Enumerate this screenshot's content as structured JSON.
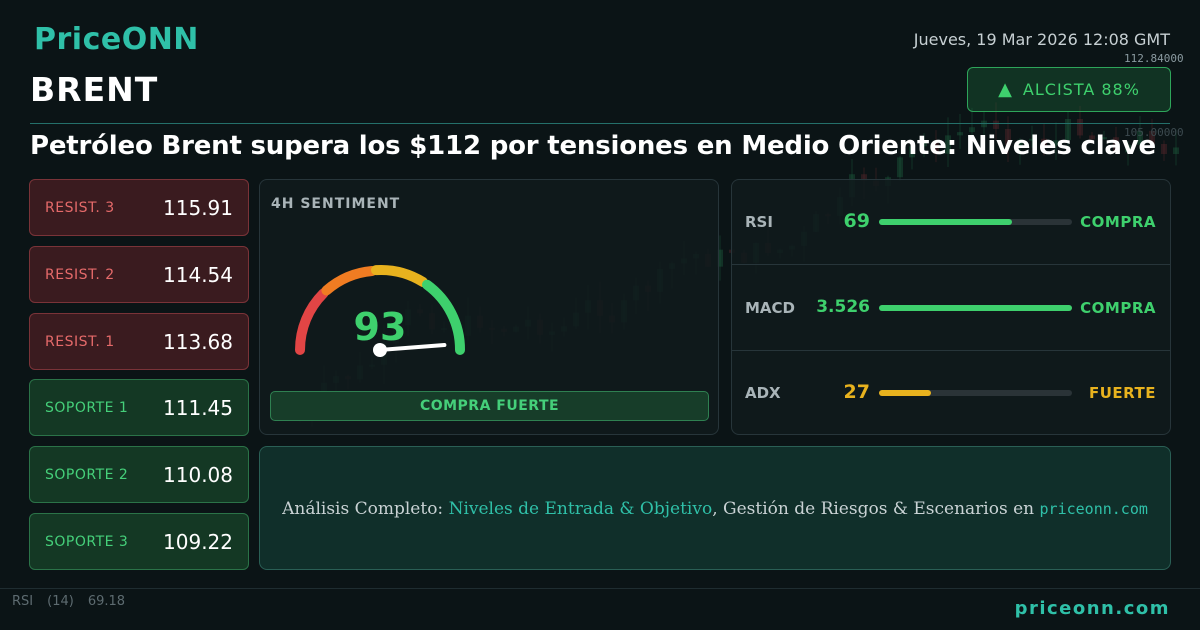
{
  "brand": {
    "logo": "PriceONN",
    "footer": "priceonn.com"
  },
  "date": "Jueves, 19 Mar 2026 12:08 GMT",
  "symbol": "BRENT",
  "badge": {
    "label": "ALCISTA 88%",
    "icon": "triangle-up-icon",
    "color": "#3ed06d"
  },
  "headline": "Petróleo Brent supera los $112 por tensiones en Medio Oriente: Niveles clave",
  "levels": [
    {
      "label": "RESIST. 3",
      "value": "115.91",
      "kind": "resistance"
    },
    {
      "label": "RESIST. 2",
      "value": "114.54",
      "kind": "resistance"
    },
    {
      "label": "RESIST. 1",
      "value": "113.68",
      "kind": "resistance"
    },
    {
      "label": "SOPORTE 1",
      "value": "111.45",
      "kind": "support"
    },
    {
      "label": "SOPORTE 2",
      "value": "110.08",
      "kind": "support"
    },
    {
      "label": "SOPORTE 3",
      "value": "109.22",
      "kind": "support"
    }
  ],
  "sentiment": {
    "title": "4H SENTIMENT",
    "score": "93",
    "score_fraction": 0.93,
    "verdict": "COMPRA FUERTE"
  },
  "indicators": [
    {
      "name": "RSI",
      "value": "69",
      "fill": 0.69,
      "signal": "COMPRA",
      "color": "#3ed06d"
    },
    {
      "name": "MACD",
      "value": "3.526",
      "fill": 1.0,
      "signal": "COMPRA",
      "color": "#3ed06d"
    },
    {
      "name": "ADX",
      "value": "27",
      "fill": 0.27,
      "signal": "FUERTE",
      "color": "#e8b21e"
    }
  ],
  "cta": {
    "prefix": "Análisis Completo:",
    "highlight": "Niveles de Entrada & Objetivo",
    "middle": ", Gestión de Riesgos & Escenarios en",
    "link": "priceonn.com"
  },
  "background_chart": {
    "price_labels": [
      "112.84000",
      "105.00000"
    ],
    "rsi_label": "RSI",
    "rsi_period": "(14)",
    "rsi_value": "69.18"
  },
  "colors": {
    "accent": "#2fc0a8",
    "bull": "#3ed06d",
    "bear": "#e56a6a",
    "warn": "#e8b21e"
  }
}
